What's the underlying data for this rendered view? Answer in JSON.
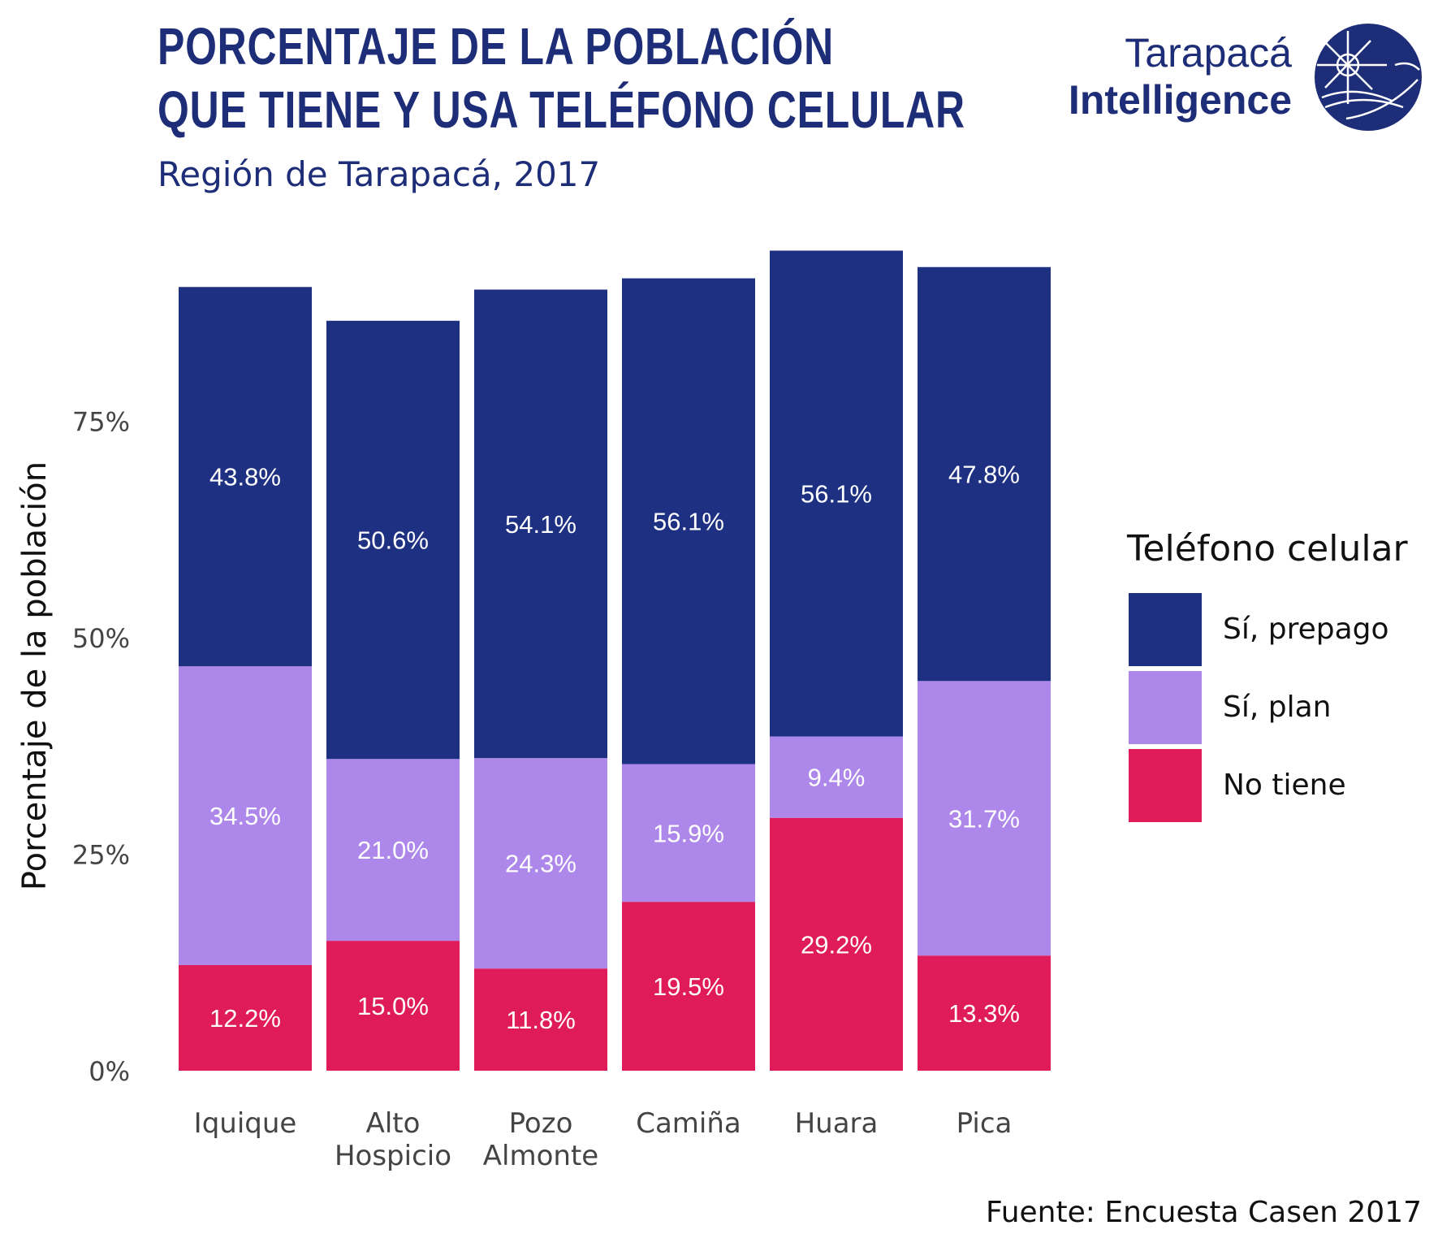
{
  "header": {
    "title_line1": "PORCENTAJE DE LA POBLACIÓN",
    "title_line2": "QUE TIENE Y USA TELÉFONO CELULAR",
    "subtitle": "Región de Tarapacá, 2017"
  },
  "logo": {
    "line1": "Tarapacá",
    "line2": "Intelligence"
  },
  "legend": {
    "title": "Teléfono celular",
    "items": [
      {
        "label": "Sí, prepago",
        "color": "#1e3082"
      },
      {
        "label": "Sí, plan",
        "color": "#ad87e9"
      },
      {
        "label": "No tiene",
        "color": "#e01b5a"
      }
    ]
  },
  "source": "Fuente: Encuesta Casen 2017",
  "chart_data": {
    "type": "bar",
    "stacked": true,
    "categories": [
      "Iquique",
      "Alto Hospicio",
      "Pozo Almonte",
      "Camiña",
      "Huara",
      "Pica"
    ],
    "category_lines": [
      [
        "Iquique"
      ],
      [
        "Alto",
        "Hospicio"
      ],
      [
        "Pozo",
        "Almonte"
      ],
      [
        "Camiña"
      ],
      [
        "Huara"
      ],
      [
        "Pica"
      ]
    ],
    "series": [
      {
        "name": "No tiene",
        "color": "#e01b5a",
        "values": [
          12.2,
          15.0,
          11.8,
          19.5,
          29.2,
          13.3
        ],
        "labels": [
          "12.2%",
          "15.0%",
          "11.8%",
          "19.5%",
          "29.2%",
          "13.3%"
        ]
      },
      {
        "name": "Sí, plan",
        "color": "#ad87e9",
        "values": [
          34.5,
          21.0,
          24.3,
          15.9,
          9.4,
          31.7
        ],
        "labels": [
          "34.5%",
          "21.0%",
          "24.3%",
          "15.9%",
          "9.4%",
          "31.7%"
        ]
      },
      {
        "name": "Sí, prepago",
        "color": "#1e3082",
        "values": [
          43.8,
          50.6,
          54.1,
          56.1,
          56.1,
          47.8
        ],
        "labels": [
          "43.8%",
          "50.6%",
          "54.1%",
          "56.1%",
          "56.1%",
          "47.8%"
        ]
      }
    ],
    "ylabel": "Porcentaje de la población",
    "xlabel": "",
    "yticks": [
      0,
      25,
      50,
      75
    ],
    "ytick_labels": [
      "0%",
      "25%",
      "50%",
      "75%"
    ],
    "ylim": [
      0,
      100
    ],
    "grid": false,
    "legend_position": "right"
  }
}
